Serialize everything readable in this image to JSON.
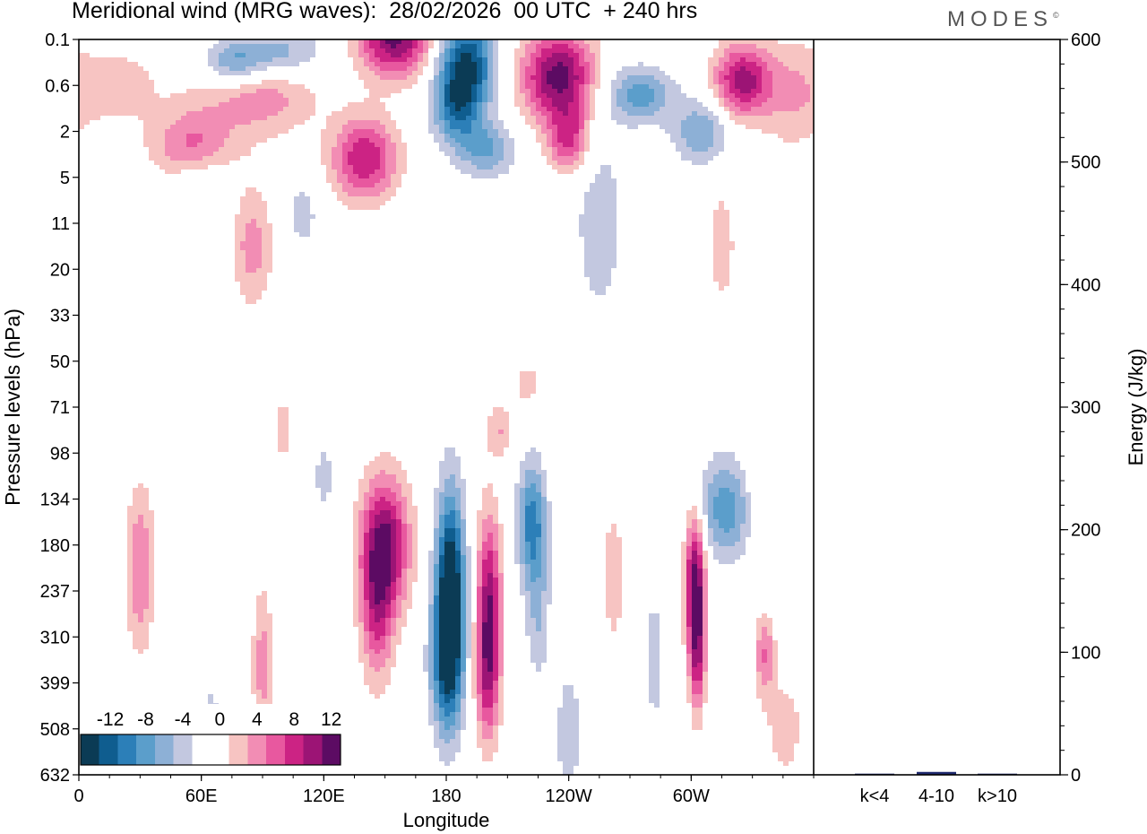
{
  "title": "Meridional wind (MRG waves):  28/02/2026  00 UTC  + 240 hrs",
  "logo": {
    "text": "MODES",
    "mark": "©"
  },
  "colors": {
    "neg": [
      "#0b3b55",
      "#0f5d8f",
      "#2c7fb8",
      "#5b9ecb",
      "#8db0d6",
      "#c3c8e0"
    ],
    "neutral": "#ffffff",
    "pos": [
      "#f7c4c2",
      "#f28db4",
      "#e8589f",
      "#cc2384",
      "#9c1475",
      "#5c0b63"
    ],
    "energy_bar": "#1f2a6e"
  },
  "chart_data": [
    {
      "type": "contour",
      "title": "Meridional wind (MRG waves)",
      "xlabel": "Longitude",
      "ylabel": "Pressure levels (hPa)",
      "x_ticks": [
        "0",
        "60E",
        "120E",
        "180",
        "120W",
        "60W"
      ],
      "x_tick_degrees": [
        0,
        60,
        120,
        180,
        240,
        300
      ],
      "xlim_degrees": [
        0,
        360
      ],
      "y_ticks": [
        "0.1",
        "0.6",
        "2",
        "5",
        "11",
        "20",
        "33",
        "50",
        "71",
        "98",
        "134",
        "180",
        "237",
        "310",
        "399",
        "508",
        "632"
      ],
      "colorbar": {
        "labels": [
          "-12",
          "-8",
          "-4",
          "0",
          "4",
          "8",
          "12"
        ],
        "levels": [
          -14,
          -12,
          -10,
          -8,
          -6,
          -4,
          -2,
          0,
          2,
          4,
          6,
          8,
          10,
          12,
          14
        ]
      },
      "features": [
        {
          "lon": 88,
          "level": 0.6,
          "lon_width": 28,
          "level_span": 1.2,
          "value": 10
        },
        {
          "lon": 55,
          "level": 2.3,
          "lon_width": 20,
          "level_span": 0.8,
          "value": 6
        },
        {
          "lon": 20,
          "level": 1.0,
          "lon_width": 20,
          "level_span": 0.9,
          "value": 3
        },
        {
          "lon": 95,
          "level": 0.3,
          "lon_width": 24,
          "level_span": 0.7,
          "value": -12
        },
        {
          "lon": 75,
          "level": 0.5,
          "lon_width": 16,
          "level_span": 0.6,
          "value": -8
        },
        {
          "lon": 155,
          "level": -0.1,
          "lon_width": 18,
          "level_span": 0.9,
          "value": 13
        },
        {
          "lon": 140,
          "level": 2.6,
          "lon_width": 16,
          "level_span": 0.9,
          "value": 10
        },
        {
          "lon": 190,
          "level": 0.5,
          "lon_width": 14,
          "level_span": 1.0,
          "value": -12
        },
        {
          "lon": 185,
          "level": 1.5,
          "lon_width": 12,
          "level_span": 0.8,
          "value": -8
        },
        {
          "lon": 200,
          "level": 2.4,
          "lon_width": 14,
          "level_span": 0.6,
          "value": -6
        },
        {
          "lon": 235,
          "level": 0.8,
          "lon_width": 18,
          "level_span": 1.0,
          "value": 13
        },
        {
          "lon": 240,
          "level": 2.2,
          "lon_width": 10,
          "level_span": 0.7,
          "value": 8
        },
        {
          "lon": 275,
          "level": 1.2,
          "lon_width": 16,
          "level_span": 0.6,
          "value": -7
        },
        {
          "lon": 305,
          "level": 2.0,
          "lon_width": 14,
          "level_span": 0.7,
          "value": -6
        },
        {
          "lon": 325,
          "level": 0.9,
          "lon_width": 14,
          "level_span": 0.8,
          "value": 11
        },
        {
          "lon": 350,
          "level": 1.2,
          "lon_width": 16,
          "level_span": 1.2,
          "value": 4
        },
        {
          "lon": 85,
          "level": 4.5,
          "lon_width": 10,
          "level_span": 1.3,
          "value": 5
        },
        {
          "lon": 255,
          "level": 4.0,
          "lon_width": 14,
          "level_span": 2.5,
          "value": -3
        },
        {
          "lon": 315,
          "level": 4.5,
          "lon_width": 8,
          "level_span": 1.5,
          "value": 3
        },
        {
          "lon": 60,
          "level": 3.2,
          "lon_width": 14,
          "level_span": 0.6,
          "value": -3
        },
        {
          "lon": 110,
          "level": 3.8,
          "lon_width": 8,
          "level_span": 0.8,
          "value": -3
        },
        {
          "lon": 30,
          "level": 11.5,
          "lon_width": 7,
          "level_span": 1.8,
          "value": 6
        },
        {
          "lon": 150,
          "level": 11.0,
          "lon_width": 12,
          "level_span": 1.5,
          "value": 12
        },
        {
          "lon": 146,
          "level": 12.5,
          "lon_width": 8,
          "level_span": 1.6,
          "value": 7
        },
        {
          "lon": 182,
          "level": 12.0,
          "lon_width": 7,
          "level_span": 2.2,
          "value": -15
        },
        {
          "lon": 180,
          "level": 13.6,
          "lon_width": 8,
          "level_span": 1.6,
          "value": -8
        },
        {
          "lon": 201,
          "level": 12.3,
          "lon_width": 6,
          "level_span": 2.0,
          "value": 11
        },
        {
          "lon": 200,
          "level": 14.0,
          "lon_width": 6,
          "level_span": 1.5,
          "value": 6
        },
        {
          "lon": 222,
          "level": 10.5,
          "lon_width": 7,
          "level_span": 1.3,
          "value": -9
        },
        {
          "lon": 225,
          "level": 12.5,
          "lon_width": 6,
          "level_span": 1.5,
          "value": -4
        },
        {
          "lon": 262,
          "level": 11.7,
          "lon_width": 5,
          "level_span": 1.4,
          "value": 4
        },
        {
          "lon": 282,
          "level": 13.5,
          "lon_width": 4,
          "level_span": 1.3,
          "value": -4
        },
        {
          "lon": 302,
          "level": 11.8,
          "lon_width": 5,
          "level_span": 1.5,
          "value": 13
        },
        {
          "lon": 303,
          "level": 13.5,
          "lon_width": 4,
          "level_span": 1.3,
          "value": 8
        },
        {
          "lon": 318,
          "level": 10.2,
          "lon_width": 14,
          "level_span": 1.1,
          "value": -8
        },
        {
          "lon": 335,
          "level": 10.0,
          "lon_width": 14,
          "level_span": 1.2,
          "value": 3
        },
        {
          "lon": 336,
          "level": 13.4,
          "lon_width": 5,
          "level_span": 0.9,
          "value": 6
        },
        {
          "lon": 90,
          "level": 13.6,
          "lon_width": 5,
          "level_span": 1.7,
          "value": 5
        },
        {
          "lon": 65,
          "level": 15.0,
          "lon_width": 5,
          "level_span": 1.2,
          "value": -3
        },
        {
          "lon": 240,
          "level": 15.1,
          "lon_width": 6,
          "level_span": 1.3,
          "value": -4
        },
        {
          "lon": 100,
          "level": 8.5,
          "lon_width": 5,
          "level_span": 0.8,
          "value": 3
        },
        {
          "lon": 206,
          "level": 8.5,
          "lon_width": 6,
          "level_span": 0.6,
          "value": 4
        },
        {
          "lon": 120,
          "level": 9.5,
          "lon_width": 5,
          "level_span": 0.9,
          "value": -3
        },
        {
          "lon": 220,
          "level": 7.5,
          "lon_width": 8,
          "level_span": 0.5,
          "value": 3
        },
        {
          "lon": 346,
          "level": 15.0,
          "lon_width": 10,
          "level_span": 1.2,
          "value": 3
        }
      ]
    },
    {
      "type": "bar",
      "ylabel": "Energy (J/kg)",
      "categories": [
        "k<4",
        "4-10",
        "k>10"
      ],
      "values": [
        0,
        2,
        0
      ],
      "ylim": [
        0,
        600
      ],
      "y_ticks": [
        "0",
        "100",
        "200",
        "300",
        "400",
        "500",
        "600"
      ]
    }
  ]
}
